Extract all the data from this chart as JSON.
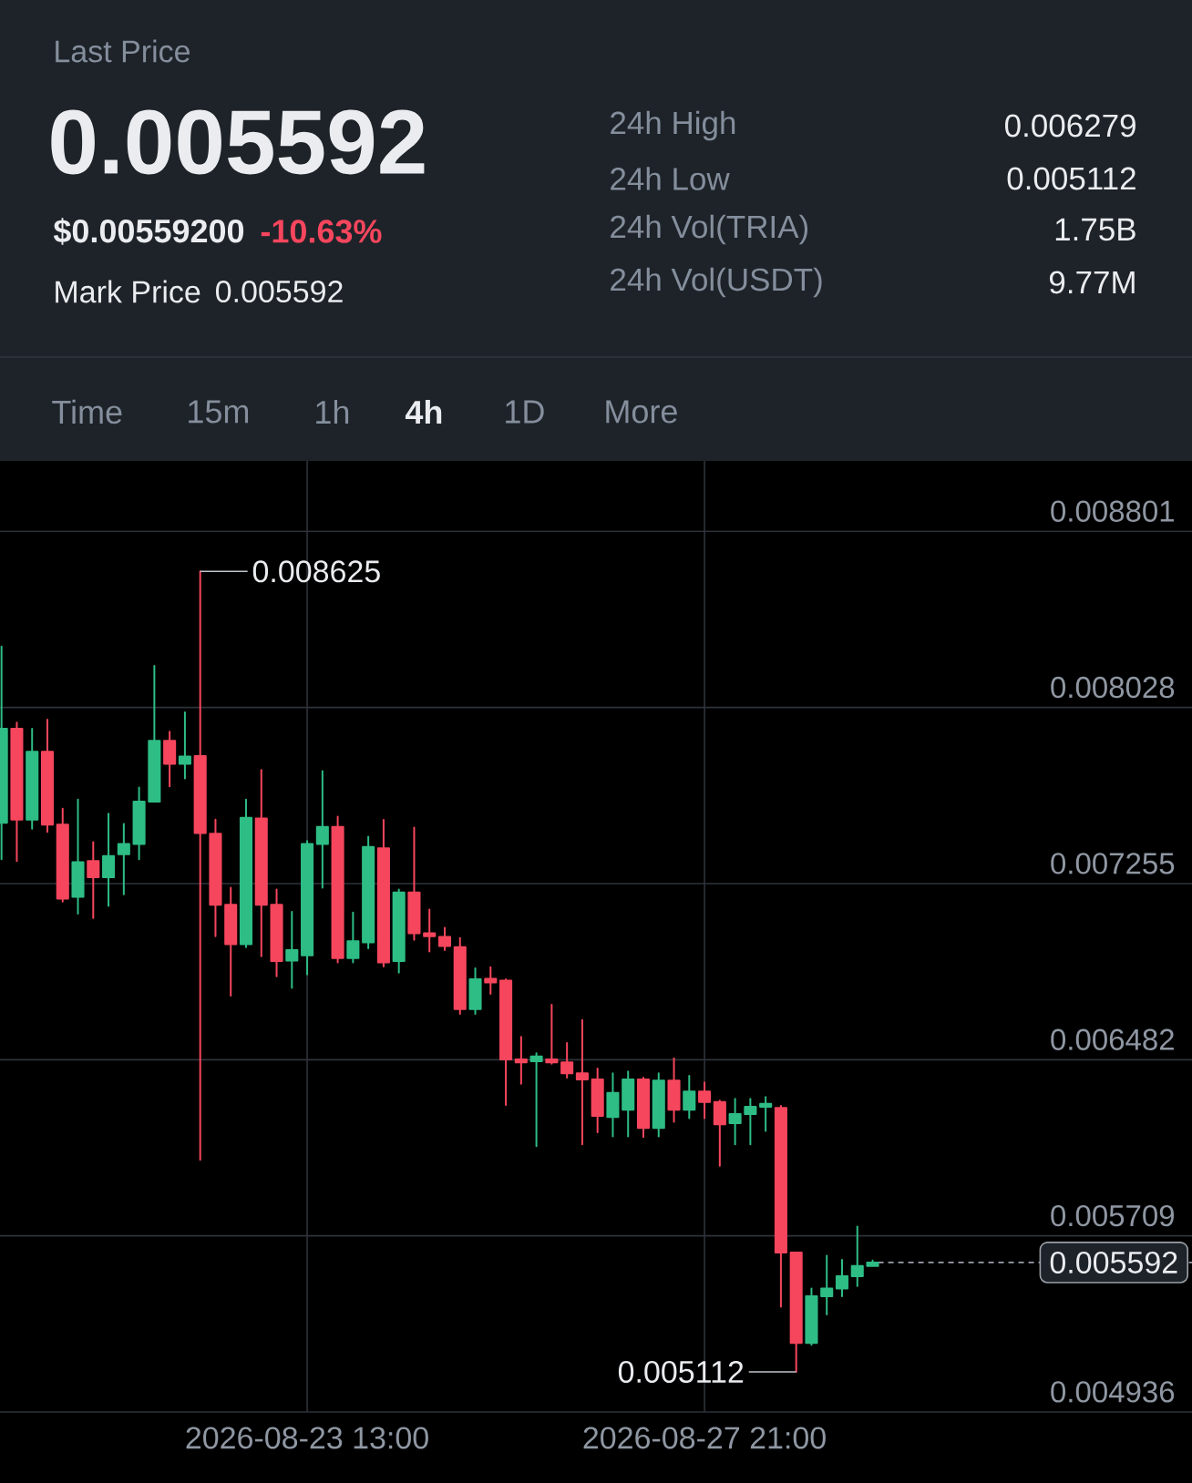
{
  "chart_data": {
    "type": "candlestick",
    "annotations": [
      "Last Price",
      "0.005592",
      "$0.00559200",
      "-10.63%",
      "Mark Price",
      "0.005592",
      "24h High",
      "0.006279",
      "24h Low",
      "0.005112",
      "24h Vol(TRIA)",
      "1.75B",
      "24h Vol(USDT)",
      "9.77M",
      "Time",
      "15m",
      "1h",
      "4h",
      "1D",
      "More",
      {
        "text": "0.008625",
        "x": "2026-08-22T09:00",
        "y": 0.008625
      },
      {
        "text": "0.005112",
        "x": "2026-08-28T21:00",
        "y": 0.005112
      }
    ],
    "x": [
      "2026-08-20T05:00",
      "2026-08-20T09:00",
      "2026-08-20T13:00",
      "2026-08-20T17:00",
      "2026-08-20T21:00",
      "2026-08-21T01:00",
      "2026-08-21T05:00",
      "2026-08-21T09:00",
      "2026-08-21T13:00",
      "2026-08-21T17:00",
      "2026-08-21T21:00",
      "2026-08-22T01:00",
      "2026-08-22T05:00",
      "2026-08-22T09:00",
      "2026-08-22T13:00",
      "2026-08-22T17:00",
      "2026-08-22T21:00",
      "2026-08-23T01:00",
      "2026-08-23T05:00",
      "2026-08-23T09:00",
      "2026-08-23T13:00",
      "2026-08-23T17:00",
      "2026-08-23T21:00",
      "2026-08-24T01:00",
      "2026-08-24T05:00",
      "2026-08-24T09:00",
      "2026-08-24T13:00",
      "2026-08-24T17:00",
      "2026-08-24T21:00",
      "2026-08-25T01:00",
      "2026-08-25T05:00",
      "2026-08-25T09:00",
      "2026-08-25T13:00",
      "2026-08-25T17:00",
      "2026-08-25T21:00",
      "2026-08-26T01:00",
      "2026-08-26T05:00",
      "2026-08-26T09:00",
      "2026-08-26T13:00",
      "2026-08-26T17:00",
      "2026-08-26T21:00",
      "2026-08-27T01:00",
      "2026-08-27T05:00",
      "2026-08-27T09:00",
      "2026-08-27T13:00",
      "2026-08-27T17:00",
      "2026-08-27T21:00",
      "2026-08-28T01:00",
      "2026-08-28T05:00",
      "2026-08-28T09:00",
      "2026-08-28T13:00",
      "2026-08-28T17:00",
      "2026-08-28T21:00",
      "2026-08-29T01:00",
      "2026-08-29T05:00",
      "2026-08-29T09:00",
      "2026-08-29T13:00",
      "2026-08-29T17:00"
    ],
    "ohlc": [
      [
        0.007522,
        0.008295,
        0.007362,
        0.007935
      ],
      [
        0.007935,
        0.007962,
        0.007354,
        0.007536
      ],
      [
        0.007536,
        0.007935,
        0.007496,
        0.007834
      ],
      [
        0.007834,
        0.007975,
        0.007482,
        0.007514
      ],
      [
        0.007514,
        0.007584,
        0.007176,
        0.007189
      ],
      [
        0.007197,
        0.007624,
        0.007123,
        0.007349
      ],
      [
        0.007354,
        0.007437,
        0.007104,
        0.007283
      ],
      [
        0.007283,
        0.007562,
        0.007157,
        0.007376
      ],
      [
        0.007384,
        0.007517,
        0.007208,
        0.007429
      ],
      [
        0.007429,
        0.007677,
        0.007362,
        0.007615
      ],
      [
        0.007615,
        0.00821,
        0.007615,
        0.007882
      ],
      [
        0.007882,
        0.007922,
        0.007682,
        0.007781
      ],
      [
        0.007781,
        0.008007,
        0.007717,
        0.007813
      ],
      [
        0.007815,
        0.008625,
        0.006043,
        0.007477
      ],
      [
        0.007474,
        0.007536,
        0.007024,
        0.007162
      ],
      [
        0.007162,
        0.007237,
        0.006763,
        0.006989
      ],
      [
        0.006989,
        0.007624,
        0.006976,
        0.007544
      ],
      [
        0.007541,
        0.007754,
        0.006936,
        0.007162
      ],
      [
        0.007162,
        0.007229,
        0.006848,
        0.006915
      ],
      [
        0.006917,
        0.007131,
        0.006797,
        0.006963
      ],
      [
        0.00694,
        0.007442,
        0.006856,
        0.007429
      ],
      [
        0.007429,
        0.007749,
        0.007237,
        0.007504
      ],
      [
        0.007504,
        0.007549,
        0.006909,
        0.006928
      ],
      [
        0.006928,
        0.007128,
        0.006909,
        0.007002
      ],
      [
        0.006997,
        0.007461,
        0.006971,
        0.007416
      ],
      [
        0.00741,
        0.007535,
        0.006891,
        0.006909
      ],
      [
        0.006915,
        0.007229,
        0.006864,
        0.007216
      ],
      [
        0.007216,
        0.007501,
        0.007008,
        0.007037
      ],
      [
        0.007037,
        0.007141,
        0.006957,
        0.007024
      ],
      [
        0.007021,
        0.007061,
        0.006963,
        0.006981
      ],
      [
        0.006976,
        0.007016,
        0.006683,
        0.006704
      ],
      [
        0.006704,
        0.006883,
        0.006683,
        0.006835
      ],
      [
        0.006837,
        0.006888,
        0.006771,
        0.006821
      ],
      [
        0.006829,
        0.006835,
        0.006283,
        0.006483
      ],
      [
        0.006483,
        0.006582,
        0.006376,
        0.00647
      ],
      [
        0.006475,
        0.00651,
        0.006102,
        0.006496
      ],
      [
        0.006483,
        0.006723,
        0.006464,
        0.00647
      ],
      [
        0.00647,
        0.006555,
        0.006403,
        0.006422
      ],
      [
        0.006422,
        0.006656,
        0.00611,
        0.006395
      ],
      [
        0.006395,
        0.006443,
        0.006163,
        0.006235
      ],
      [
        0.00623,
        0.006422,
        0.006145,
        0.006336
      ],
      [
        0.006262,
        0.00643,
        0.006145,
        0.006395
      ],
      [
        0.006395,
        0.006403,
        0.006142,
        0.006182
      ],
      [
        0.006182,
        0.006422,
        0.006145,
        0.00639
      ],
      [
        0.00639,
        0.006488,
        0.006209,
        0.006262
      ],
      [
        0.006262,
        0.006411,
        0.006225,
        0.006342
      ],
      [
        0.006342,
        0.006382,
        0.006225,
        0.006296
      ],
      [
        0.006296,
        0.006302,
        0.006017,
        0.006198
      ],
      [
        0.006203,
        0.00631,
        0.00611,
        0.006243
      ],
      [
        0.006243,
        0.00631,
        0.00611,
        0.006275
      ],
      [
        0.006275,
        0.006318,
        0.006169,
        0.006288
      ],
      [
        0.00627,
        0.006279,
        0.005398,
        0.005636
      ],
      [
        0.005636,
        0.005636,
        0.005112,
        0.005239
      ],
      [
        0.005239,
        0.005478,
        0.005231,
        0.005444
      ],
      [
        0.005444,
        0.005622,
        0.005364,
        0.005478
      ],
      [
        0.005478,
        0.005604,
        0.005444,
        0.005532
      ],
      [
        0.005532,
        0.00575,
        0.005489,
        0.005577
      ],
      [
        0.005577,
        0.005601,
        0.005577,
        0.005592
      ]
    ],
    "colors": [
      "#2ebd85",
      "#f6465d",
      "#2ebd85",
      "#f6465d",
      "#f6465d",
      "#2ebd85",
      "#f6465d",
      "#2ebd85",
      "#2ebd85",
      "#2ebd85",
      "#2ebd85",
      "#f6465d",
      "#2ebd85",
      "#f6465d",
      "#f6465d",
      "#f6465d",
      "#2ebd85",
      "#f6465d",
      "#f6465d",
      "#2ebd85",
      "#2ebd85",
      "#2ebd85",
      "#f6465d",
      "#2ebd85",
      "#2ebd85",
      "#f6465d",
      "#2ebd85",
      "#f6465d",
      "#f6465d",
      "#f6465d",
      "#f6465d",
      "#2ebd85",
      "#f6465d",
      "#f6465d",
      "#f6465d",
      "#2ebd85",
      "#f6465d",
      "#f6465d",
      "#f6465d",
      "#f6465d",
      "#2ebd85",
      "#2ebd85",
      "#f6465d",
      "#2ebd85",
      "#f6465d",
      "#2ebd85",
      "#f6465d",
      "#f6465d",
      "#2ebd85",
      "#2ebd85",
      "#2ebd85",
      "#f6465d",
      "#f6465d",
      "#2ebd85",
      "#2ebd85",
      "#2ebd85",
      "#2ebd85",
      "#2ebd85"
    ],
    "xlim": [
      "2026-08-20T04:36",
      "2026-09-02T04:36"
    ],
    "xticks": [
      {
        "value": "2026-08-23T13:00",
        "label": "2026-08-23 13:00"
      },
      {
        "value": "2026-08-27T21:00",
        "label": "2026-08-27 21:00"
      }
    ],
    "ylim": [
      0.004936,
      0.00911
    ],
    "yticks": [
      0.004936,
      0.005709,
      0.006482,
      0.007255,
      0.008028,
      0.008801
    ],
    "grid": true,
    "ref_lines": [
      {
        "axis": "y",
        "value": 0.005592,
        "label": "0.005592",
        "line_style": "dashed",
        "color": "#9aa0a8"
      }
    ]
  }
}
